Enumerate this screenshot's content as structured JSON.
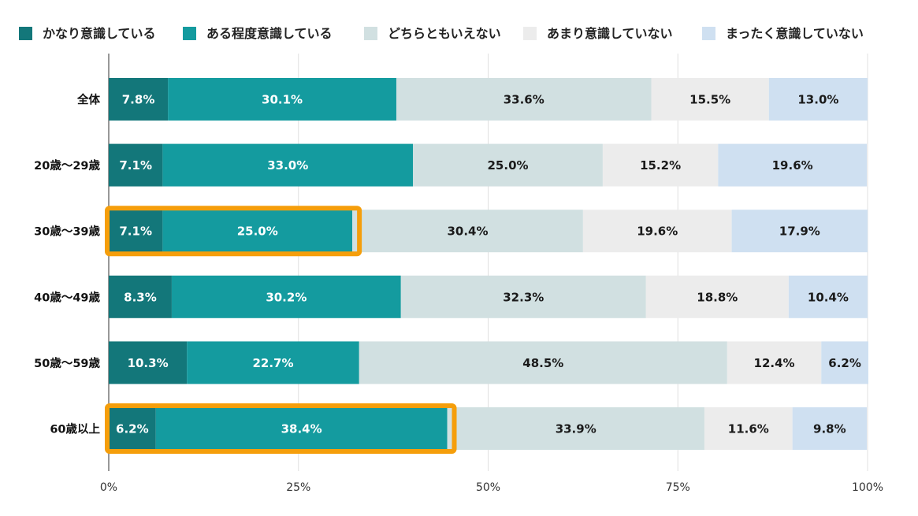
{
  "chart_data": {
    "type": "bar",
    "orientation": "horizontal",
    "stacked": "percent",
    "categories": [
      "全体",
      "20歳〜29歳",
      "30歳〜39歳",
      "40歳〜49歳",
      "50歳〜59歳",
      "60歳以上"
    ],
    "series": [
      {
        "name": "かなり意識している",
        "color": "#13777a",
        "text_color": "#ffffff",
        "values": [
          7.8,
          7.1,
          7.1,
          8.3,
          10.3,
          6.2
        ]
      },
      {
        "name": "ある程度意識している",
        "color": "#149b9f",
        "text_color": "#ffffff",
        "values": [
          30.1,
          33.0,
          25.0,
          30.2,
          22.7,
          38.4
        ]
      },
      {
        "name": "どちらともいえない",
        "color": "#d1e0e1",
        "text_color": "#1a1a1a",
        "values": [
          33.6,
          25.0,
          30.4,
          32.3,
          48.5,
          33.9
        ]
      },
      {
        "name": "あまり意識していない",
        "color": "#ececec",
        "text_color": "#1a1a1a",
        "values": [
          15.5,
          15.2,
          19.6,
          18.8,
          12.4,
          11.6
        ]
      },
      {
        "name": "まったく意識していない",
        "color": "#cfe0f1",
        "text_color": "#1a1a1a",
        "values": [
          13.0,
          19.6,
          17.9,
          10.4,
          6.2,
          9.8
        ]
      }
    ],
    "value_labels": [
      [
        "7.8%",
        "30.1%",
        "33.6%",
        "15.5%",
        "13.0%"
      ],
      [
        "7.1%",
        "33.0%",
        "25.0%",
        "15.2%",
        "19.6%"
      ],
      [
        "7.1%",
        "25.0%",
        "30.4%",
        "19.6%",
        "17.9%"
      ],
      [
        "8.3%",
        "30.2%",
        "32.3%",
        "18.8%",
        "10.4%"
      ],
      [
        "10.3%",
        "22.7%",
        "48.5%",
        "12.4%",
        "6.2%"
      ],
      [
        "6.2%",
        "38.4%",
        "33.9%",
        "11.6%",
        "9.8%"
      ]
    ],
    "xlim": [
      0,
      100
    ],
    "x_ticks": [
      0,
      25,
      50,
      75,
      100
    ],
    "x_tick_labels": [
      "0%",
      "25%",
      "50%",
      "75%",
      "100%"
    ],
    "grid": true,
    "legend_position": "top",
    "highlights": [
      {
        "category": "30歳〜39歳",
        "series_span": [
          "かなり意識している",
          "ある程度意識している"
        ],
        "color": "#f59e0b"
      },
      {
        "category": "60歳以上",
        "series_span": [
          "かなり意識している",
          "ある程度意識している"
        ],
        "color": "#f59e0b"
      }
    ]
  }
}
